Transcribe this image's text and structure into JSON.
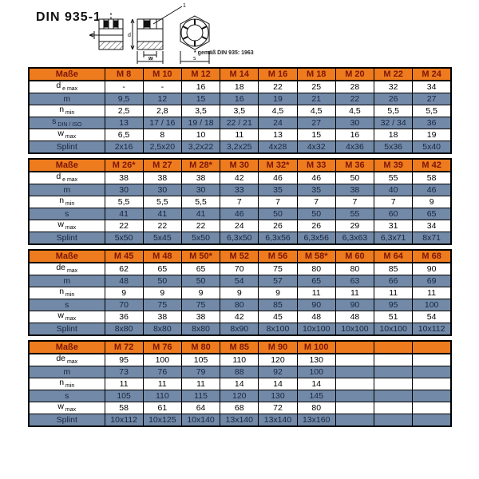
{
  "page": {
    "title": "DIN 935-1",
    "footnote": "* gemäß DIN 935: 1963"
  },
  "colors": {
    "header_bg": "#EE7B1E",
    "header_text": "#7E1605",
    "row_blue": "#7289A7",
    "row_blue_text": "#17263F",
    "border": "#000000"
  },
  "diagram": {
    "description": "castle-nut technical drawing: side view with splint, sectional view, hexagon top view",
    "labels": {
      "d": "d",
      "w": "w",
      "m": "m",
      "s": "s",
      "callout": "1"
    }
  },
  "tables": [
    {
      "header": [
        "Maße",
        "M 8",
        "M 10",
        "M 12",
        "M 14",
        "M 16",
        "M 18",
        "M 20",
        "M 22",
        "M 24"
      ],
      "rows": [
        {
          "label_main": "d",
          "label_sub": "e max",
          "values": [
            "-",
            "-",
            "16",
            "18",
            "22",
            "25",
            "28",
            "32",
            "34"
          ]
        },
        {
          "label_main": "m",
          "label_sub": "",
          "values": [
            "9,5",
            "12",
            "15",
            "16",
            "19",
            "21",
            "22",
            "26",
            "27"
          ]
        },
        {
          "label_main": "n",
          "label_sub": "min",
          "values": [
            "2,5",
            "2,8",
            "3,5",
            "3,5",
            "4,5",
            "4,5",
            "4,5",
            "5,5",
            "5,5"
          ]
        },
        {
          "label_main": "s",
          "label_sub": "DIN / ISO",
          "values": [
            "13",
            "17 / 16",
            "19 / 18",
            "22 / 21",
            "24",
            "27",
            "30",
            "32 / 34",
            "36"
          ]
        },
        {
          "label_main": "w",
          "label_sub": "max",
          "values": [
            "6,5",
            "8",
            "10",
            "11",
            "13",
            "15",
            "16",
            "18",
            "19"
          ]
        },
        {
          "label_main": "Splint",
          "label_sub": "",
          "values": [
            "2x16",
            "2,5x20",
            "3,2x22",
            "3,2x25",
            "4x28",
            "4x32",
            "4x36",
            "5x36",
            "5x40"
          ]
        }
      ]
    },
    {
      "header": [
        "Maße",
        "M 26*",
        "M 27",
        "M 28*",
        "M 30",
        "M 32*",
        "M 33",
        "M 36",
        "M 39",
        "M 42"
      ],
      "rows": [
        {
          "label_main": "d",
          "label_sub": "e max",
          "values": [
            "38",
            "38",
            "38",
            "42",
            "46",
            "46",
            "50",
            "55",
            "58"
          ]
        },
        {
          "label_main": "m",
          "label_sub": "",
          "values": [
            "30",
            "30",
            "30",
            "33",
            "35",
            "35",
            "38",
            "40",
            "46"
          ]
        },
        {
          "label_main": "n",
          "label_sub": "min",
          "values": [
            "5,5",
            "5,5",
            "5,5",
            "7",
            "7",
            "7",
            "7",
            "7",
            "9"
          ]
        },
        {
          "label_main": "s",
          "label_sub": "",
          "values": [
            "41",
            "41",
            "41",
            "46",
            "50",
            "50",
            "55",
            "60",
            "65"
          ]
        },
        {
          "label_main": "w",
          "label_sub": "max",
          "values": [
            "22",
            "22",
            "22",
            "24",
            "26",
            "26",
            "29",
            "31",
            "34"
          ]
        },
        {
          "label_main": "Splint",
          "label_sub": "",
          "values": [
            "5x50",
            "5x45",
            "5x50",
            "6,3x50",
            "6,3x56",
            "6,3x56",
            "6,3x63",
            "6,3x71",
            "8x71"
          ]
        }
      ]
    },
    {
      "header": [
        "Maße",
        "M 45",
        "M 48",
        "M 50*",
        "M 52",
        "M 56",
        "M 58*",
        "M 60",
        "M 64",
        "M 68"
      ],
      "rows": [
        {
          "label_main": "de",
          "label_sub": "max",
          "values": [
            "62",
            "65",
            "65",
            "70",
            "75",
            "80",
            "80",
            "85",
            "90"
          ]
        },
        {
          "label_main": "m",
          "label_sub": "",
          "values": [
            "48",
            "50",
            "50",
            "54",
            "57",
            "65",
            "63",
            "66",
            "69"
          ]
        },
        {
          "label_main": "n",
          "label_sub": "min",
          "values": [
            "9",
            "9",
            "9",
            "9",
            "9",
            "11",
            "11",
            "11",
            "11"
          ]
        },
        {
          "label_main": "s",
          "label_sub": "",
          "values": [
            "70",
            "75",
            "75",
            "80",
            "85",
            "90",
            "90",
            "95",
            "100"
          ]
        },
        {
          "label_main": "w",
          "label_sub": "max",
          "values": [
            "36",
            "38",
            "38",
            "42",
            "45",
            "48",
            "48",
            "51",
            "54"
          ]
        },
        {
          "label_main": "Splint",
          "label_sub": "",
          "values": [
            "8x80",
            "8x80",
            "8x80",
            "8x90",
            "8x100",
            "10x100",
            "10x100",
            "10x100",
            "10x112"
          ]
        }
      ]
    },
    {
      "header": [
        "Maße",
        "M 72",
        "M 76",
        "M 80",
        "M 85",
        "M 90",
        "M 100",
        "",
        "",
        ""
      ],
      "rows": [
        {
          "label_main": "de",
          "label_sub": "max",
          "values": [
            "95",
            "100",
            "105",
            "110",
            "120",
            "130",
            "",
            "",
            ""
          ]
        },
        {
          "label_main": "m",
          "label_sub": "",
          "values": [
            "73",
            "76",
            "79",
            "88",
            "92",
            "100",
            "",
            "",
            ""
          ]
        },
        {
          "label_main": "n",
          "label_sub": "min",
          "values": [
            "11",
            "11",
            "11",
            "14",
            "14",
            "14",
            "",
            "",
            ""
          ]
        },
        {
          "label_main": "s",
          "label_sub": "",
          "values": [
            "105",
            "110",
            "115",
            "120",
            "130",
            "145",
            "",
            "",
            ""
          ]
        },
        {
          "label_main": "w",
          "label_sub": "max",
          "values": [
            "58",
            "61",
            "64",
            "68",
            "72",
            "80",
            "",
            "",
            ""
          ]
        },
        {
          "label_main": "Splint",
          "label_sub": "",
          "values": [
            "10x112",
            "10x125",
            "10x140",
            "13x140",
            "13x140",
            "13x160",
            "",
            "",
            ""
          ]
        }
      ]
    }
  ]
}
